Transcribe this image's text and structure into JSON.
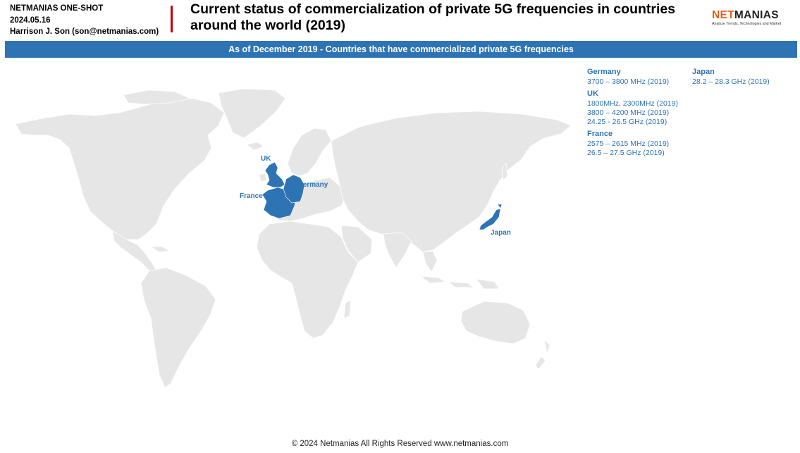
{
  "header": {
    "series": "NETMANIAS ONE-SHOT",
    "date": "2024.05.16",
    "author": "Harrison J. Son (son@netmanias.com)",
    "title": "Current status of commercialization of private 5G frequencies in countries around the world (2019)"
  },
  "logo": {
    "brand_net": "NET",
    "brand_manias": "MANIAS",
    "tagline": "Analyze Trends, Technologies and Market"
  },
  "banner": {
    "text": "As of December 2019 - Countries that have commercialized private 5G frequencies"
  },
  "colors": {
    "accent": "#2e74b5",
    "land": "#e6e6e6",
    "title_bar": "#c00000",
    "brand_orange": "#e8601c"
  },
  "map": {
    "highlighted_countries": [
      "UK",
      "Germany",
      "France",
      "Japan"
    ],
    "labels": {
      "uk": "UK",
      "germany": "Germany",
      "france": "France",
      "japan": "Japan"
    }
  },
  "legend": [
    {
      "country": "Germany",
      "frequencies": [
        "3700 – 3800 MHz (2019)"
      ]
    },
    {
      "country": "UK",
      "frequencies": [
        "1800MHz, 2300MHz (2019)",
        "3800 – 4200 MHz (2019)",
        "24.25 - 26.5 GHz (2019)"
      ]
    },
    {
      "country": "France",
      "frequencies": [
        "2575 – 2615 MHz (2019)",
        "26.5 – 27.5 GHz (2019)"
      ]
    },
    {
      "country": "Japan",
      "frequencies": [
        "28.2 – 28.3 GHz (2019)"
      ]
    }
  ],
  "footer": {
    "text": "© 2024 Netmanias All Rights Reserved www.netmanias.com"
  }
}
